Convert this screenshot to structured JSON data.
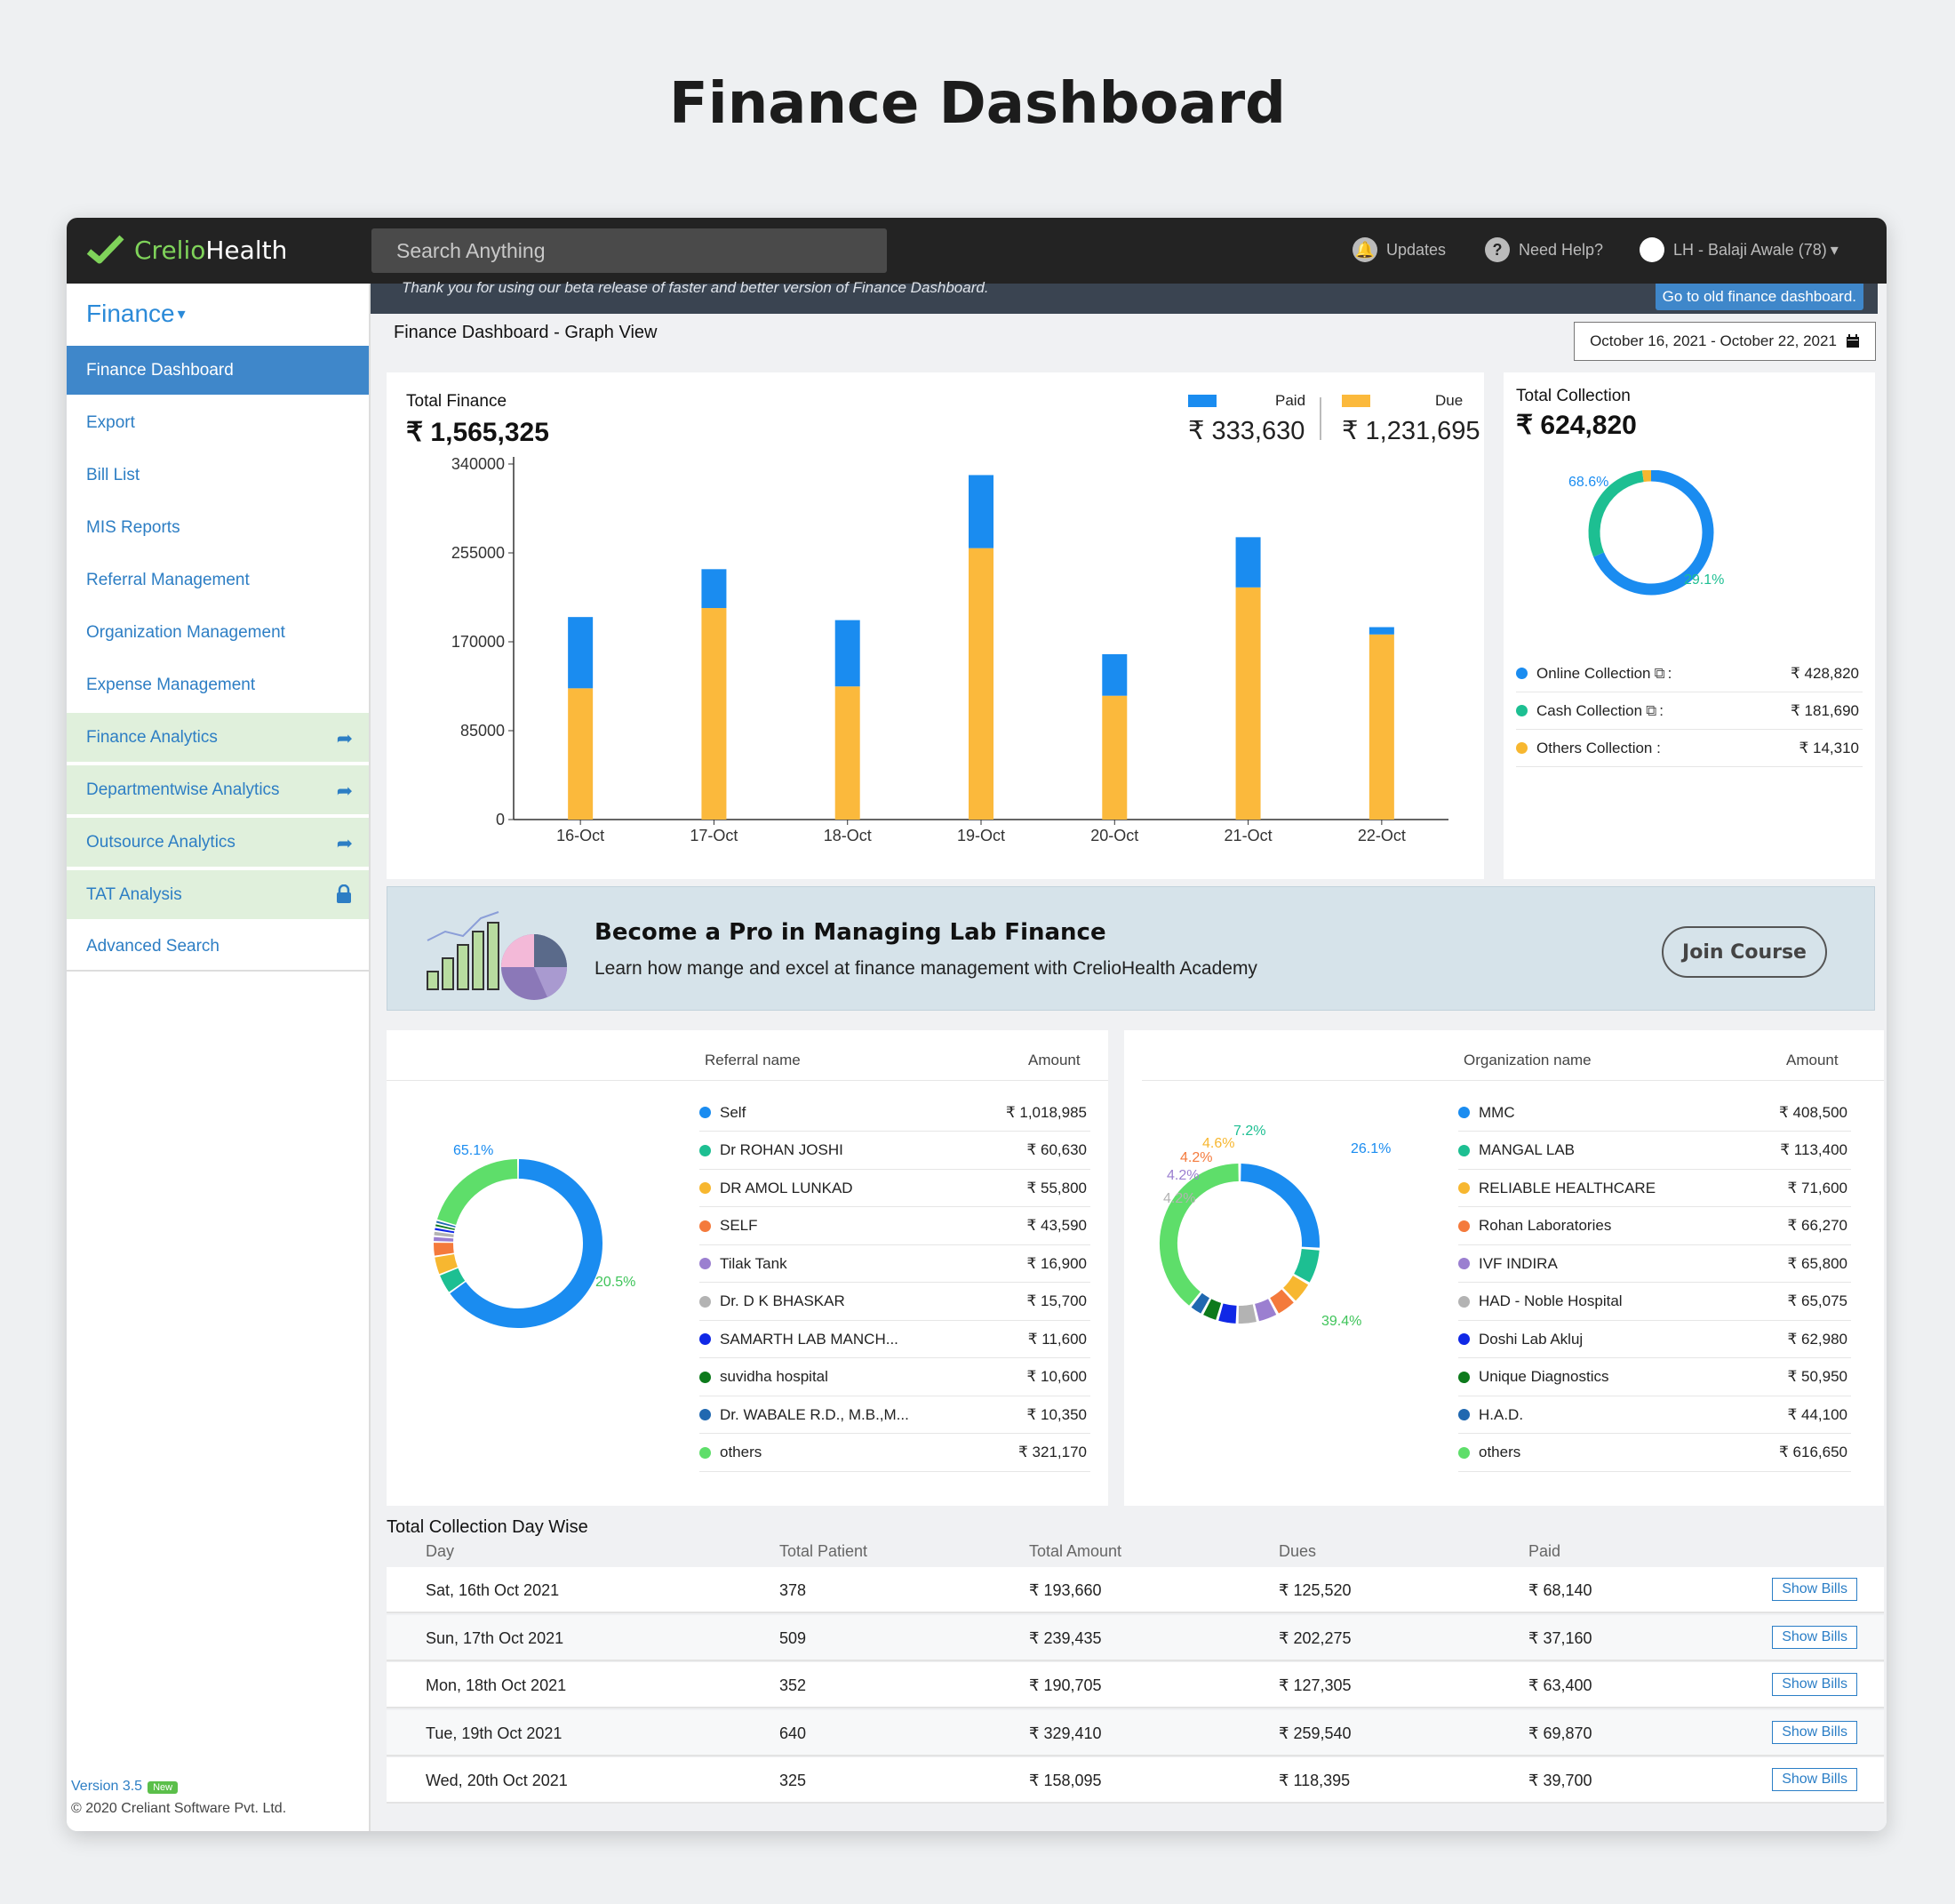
{
  "page": {
    "title": "Finance Dashboard"
  },
  "topbar": {
    "logo_part1": "Crelio",
    "logo_part2": "Health",
    "search_placeholder": "Search Anything",
    "updates": "Updates",
    "help": "Need Help?",
    "user": "LH - Balaji Awale (78)"
  },
  "sidebar": {
    "heading": "Finance",
    "items": [
      {
        "label": "Finance Dashboard"
      },
      {
        "label": "Export"
      },
      {
        "label": "Bill List"
      },
      {
        "label": "MIS Reports"
      },
      {
        "label": "Referral Management"
      },
      {
        "label": "Organization Management"
      },
      {
        "label": "Expense Management"
      },
      {
        "label": "Finance Analytics"
      },
      {
        "label": "Departmentwise Analytics"
      },
      {
        "label": "Outsource Analytics"
      },
      {
        "label": "TAT Analysis"
      },
      {
        "label": "Advanced Search"
      }
    ],
    "version": "Version 3.5",
    "version_badge": "New",
    "copyright": "© 2020 Creliant Software Pvt. Ltd."
  },
  "banner": {
    "text": "Thank you for using our beta release of faster and better version of Finance Dashboard.",
    "button": "Go to old finance dashboard."
  },
  "header": {
    "view_title": "Finance Dashboard - Graph View",
    "date_range": "October 16, 2021 - October 22, 2021"
  },
  "total_finance": {
    "label": "Total Finance",
    "value": "₹ 1,565,325",
    "paid_label": "Paid",
    "paid_value": "₹ 333,630",
    "due_label": "Due",
    "due_value": "₹ 1,231,695"
  },
  "total_collection": {
    "label": "Total Collection",
    "value": "₹ 624,820",
    "pct_online": "68.6%",
    "pct_cash": "29.1%",
    "items": [
      {
        "label": "Online Collection",
        "suffix": ":",
        "amount": "₹ 428,820",
        "color": "#1a8cf0"
      },
      {
        "label": "Cash Collection",
        "suffix": ":",
        "amount": "₹ 181,690",
        "color": "#1dbf92"
      },
      {
        "label": "Others Collection :",
        "suffix": "",
        "amount": "₹ 14,310",
        "color": "#f7b730"
      }
    ]
  },
  "promo": {
    "heading": "Become a Pro in Managing Lab Finance",
    "sub": "Learn how mange and excel at finance management with CrelioHealth Academy",
    "button": "Join Course"
  },
  "referral": {
    "col_name": "Referral name",
    "col_amount": "Amount",
    "pct_labels": [
      "65.1%",
      "20.5%"
    ],
    "rows": [
      {
        "name": "Self",
        "amount": "₹ 1,018,985",
        "color": "#1a8cf0"
      },
      {
        "name": "Dr ROHAN JOSHI",
        "amount": "₹ 60,630",
        "color": "#1dbf92"
      },
      {
        "name": "DR AMOL LUNKAD",
        "amount": "₹ 55,800",
        "color": "#f7b730"
      },
      {
        "name": "SELF",
        "amount": "₹ 43,590",
        "color": "#f47a3c"
      },
      {
        "name": "Tilak Tank",
        "amount": "₹ 16,900",
        "color": "#9b7fd0"
      },
      {
        "name": "Dr. D K BHASKAR",
        "amount": "₹ 15,700",
        "color": "#b3b3b3"
      },
      {
        "name": "SAMARTH LAB MANCH...",
        "amount": "₹ 11,600",
        "color": "#1028e6"
      },
      {
        "name": "suvidha hospital",
        "amount": "₹ 10,600",
        "color": "#0d7a1c"
      },
      {
        "name": "Dr. WABALE R.D., M.B.,M...",
        "amount": "₹ 10,350",
        "color": "#2068b0"
      },
      {
        "name": "others",
        "amount": "₹ 321,170",
        "color": "#5ede6a"
      }
    ]
  },
  "organization": {
    "col_name": "Organization name",
    "col_amount": "Amount",
    "pct_labels": [
      "26.1%",
      "39.4%",
      "7.2%",
      "4.6%",
      "4.2%",
      "4.2%",
      "4.2%"
    ],
    "rows": [
      {
        "name": "MMC",
        "amount": "₹ 408,500",
        "color": "#1a8cf0"
      },
      {
        "name": "MANGAL LAB",
        "amount": "₹ 113,400",
        "color": "#1dbf92"
      },
      {
        "name": "RELIABLE HEALTHCARE",
        "amount": "₹ 71,600",
        "color": "#f7b730"
      },
      {
        "name": "Rohan Laboratories",
        "amount": "₹ 66,270",
        "color": "#f47a3c"
      },
      {
        "name": "IVF INDIRA",
        "amount": "₹ 65,800",
        "color": "#9b7fd0"
      },
      {
        "name": "HAD - Noble Hospital",
        "amount": "₹ 65,075",
        "color": "#b3b3b3"
      },
      {
        "name": "Doshi Lab Akluj",
        "amount": "₹ 62,980",
        "color": "#1028e6"
      },
      {
        "name": "Unique Diagnostics",
        "amount": "₹ 50,950",
        "color": "#0d7a1c"
      },
      {
        "name": "H.A.D.",
        "amount": "₹ 44,100",
        "color": "#2068b0"
      },
      {
        "name": "others",
        "amount": "₹ 616,650",
        "color": "#5ede6a"
      }
    ]
  },
  "day_wise": {
    "title": "Total Collection Day Wise",
    "headers": [
      "Day",
      "Total Patient",
      "Total Amount",
      "Dues",
      "Paid"
    ],
    "button_label": "Show Bills",
    "rows": [
      [
        "Sat, 16th Oct 2021",
        "378",
        "₹ 193,660",
        "₹ 125,520",
        "₹ 68,140"
      ],
      [
        "Sun, 17th Oct 2021",
        "509",
        "₹ 239,435",
        "₹ 202,275",
        "₹ 37,160"
      ],
      [
        "Mon, 18th Oct 2021",
        "352",
        "₹ 190,705",
        "₹ 127,305",
        "₹ 63,400"
      ],
      [
        "Tue, 19th Oct 2021",
        "640",
        "₹ 329,410",
        "₹ 259,540",
        "₹ 69,870"
      ],
      [
        "Wed, 20th Oct 2021",
        "325",
        "₹ 158,095",
        "₹ 118,395",
        "₹ 39,700"
      ]
    ]
  },
  "colors": {
    "paid": "#1a8cf0",
    "due": "#fbb93c",
    "accent": "#3f87ca",
    "green_logo": "#7fd35a"
  },
  "chart_data": [
    {
      "type": "bar",
      "stacked": true,
      "categories": [
        "16-Oct",
        "17-Oct",
        "18-Oct",
        "19-Oct",
        "20-Oct",
        "21-Oct",
        "22-Oct"
      ],
      "series": [
        {
          "name": "Due",
          "values": [
            125520,
            202275,
            127305,
            259540,
            118395,
            222000,
            177000
          ]
        },
        {
          "name": "Paid",
          "values": [
            68140,
            37160,
            63400,
            69870,
            39700,
            48000,
            7000
          ]
        }
      ],
      "yticks": [
        "340000",
        "255000",
        "170000",
        "85000",
        "0"
      ],
      "ylim": [
        0,
        340000
      ]
    },
    {
      "type": "pie",
      "donut": true,
      "labels": [
        "Online Collection",
        "Cash Collection",
        "Others Collection"
      ],
      "values": [
        428820,
        181690,
        14310
      ]
    },
    {
      "type": "pie",
      "donut": true,
      "labels": [
        "Self",
        "Dr ROHAN JOSHI",
        "DR AMOL LUNKAD",
        "SELF",
        "Tilak Tank",
        "Dr. D K BHASKAR",
        "SAMARTH LAB MANCH...",
        "suvidha hospital",
        "Dr. WABALE R.D., M.B.,M...",
        "others"
      ],
      "values": [
        1018985,
        60630,
        55800,
        43590,
        16900,
        15700,
        11600,
        10600,
        10350,
        321170
      ]
    },
    {
      "type": "pie",
      "donut": true,
      "labels": [
        "MMC",
        "MANGAL LAB",
        "RELIABLE HEALTHCARE",
        "Rohan Laboratories",
        "IVF INDIRA",
        "HAD - Noble Hospital",
        "Doshi Lab Akluj",
        "Unique Diagnostics",
        "H.A.D.",
        "others"
      ],
      "values": [
        408500,
        113400,
        71600,
        66270,
        65800,
        65075,
        62980,
        50950,
        44100,
        616650
      ]
    }
  ]
}
